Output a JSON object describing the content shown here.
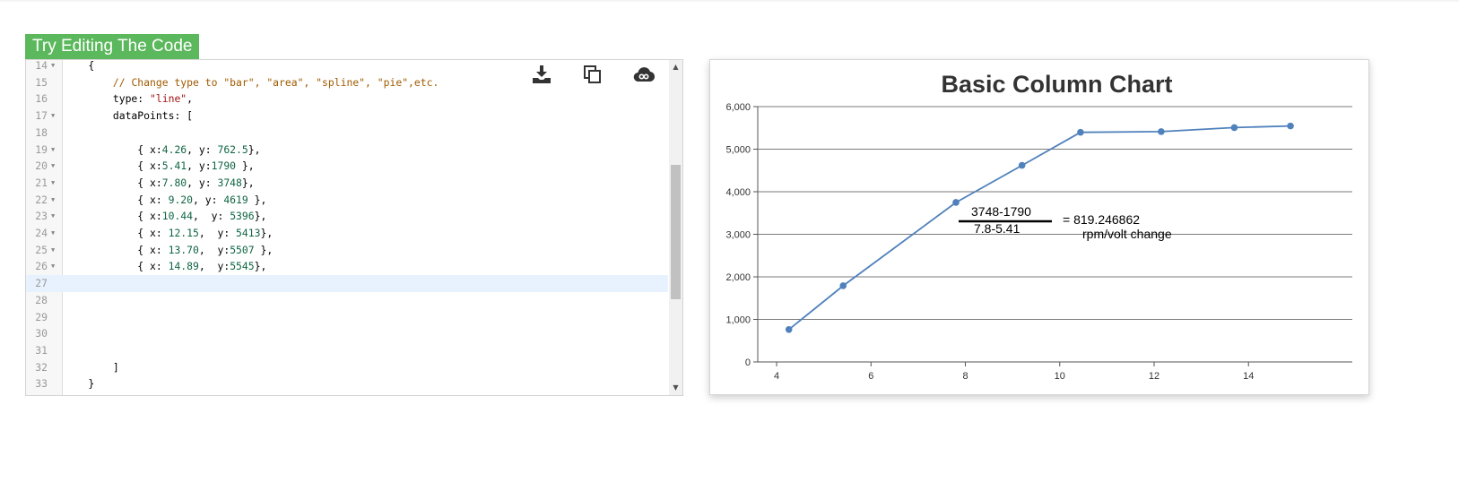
{
  "tab": {
    "label": "Try Editing The Code"
  },
  "editor": {
    "lines": [
      {
        "num": "14",
        "fold": "▼",
        "code": [
          {
            "t": "    {",
            "c": ""
          }
        ]
      },
      {
        "num": "15",
        "fold": "",
        "code": [
          {
            "t": "        ",
            "c": ""
          },
          {
            "t": "// Change type to \"bar\", \"area\", \"spline\", \"pie\",etc.",
            "c": "c-comment"
          }
        ]
      },
      {
        "num": "16",
        "fold": "",
        "code": [
          {
            "t": "        type: ",
            "c": ""
          },
          {
            "t": "\"line\"",
            "c": "c-string"
          },
          {
            "t": ",",
            "c": ""
          }
        ]
      },
      {
        "num": "17",
        "fold": "▼",
        "code": [
          {
            "t": "        dataPoints: [",
            "c": ""
          }
        ]
      },
      {
        "num": "18",
        "fold": "",
        "code": [
          {
            "t": "",
            "c": ""
          }
        ]
      },
      {
        "num": "19",
        "fold": "▼",
        "code": [
          {
            "t": "            { x:",
            "c": ""
          },
          {
            "t": "4.26",
            "c": "c-num"
          },
          {
            "t": ", y: ",
            "c": ""
          },
          {
            "t": "762.5",
            "c": "c-num"
          },
          {
            "t": "},",
            "c": ""
          }
        ]
      },
      {
        "num": "20",
        "fold": "▼",
        "code": [
          {
            "t": "            { x:",
            "c": ""
          },
          {
            "t": "5.41",
            "c": "c-num"
          },
          {
            "t": ", y:",
            "c": ""
          },
          {
            "t": "1790",
            "c": "c-num"
          },
          {
            "t": " },",
            "c": ""
          }
        ]
      },
      {
        "num": "21",
        "fold": "▼",
        "code": [
          {
            "t": "            { x:",
            "c": ""
          },
          {
            "t": "7.80",
            "c": "c-num"
          },
          {
            "t": ", y: ",
            "c": ""
          },
          {
            "t": "3748",
            "c": "c-num"
          },
          {
            "t": "},",
            "c": ""
          }
        ]
      },
      {
        "num": "22",
        "fold": "▼",
        "code": [
          {
            "t": "            { x: ",
            "c": ""
          },
          {
            "t": "9.20",
            "c": "c-num"
          },
          {
            "t": ", y: ",
            "c": ""
          },
          {
            "t": "4619",
            "c": "c-num"
          },
          {
            "t": " },",
            "c": ""
          }
        ]
      },
      {
        "num": "23",
        "fold": "▼",
        "code": [
          {
            "t": "            { x:",
            "c": ""
          },
          {
            "t": "10.44",
            "c": "c-num"
          },
          {
            "t": ",  y: ",
            "c": ""
          },
          {
            "t": "5396",
            "c": "c-num"
          },
          {
            "t": "},",
            "c": ""
          }
        ]
      },
      {
        "num": "24",
        "fold": "▼",
        "code": [
          {
            "t": "            { x: ",
            "c": ""
          },
          {
            "t": "12.15",
            "c": "c-num"
          },
          {
            "t": ",  y: ",
            "c": ""
          },
          {
            "t": "5413",
            "c": "c-num"
          },
          {
            "t": "},",
            "c": ""
          }
        ]
      },
      {
        "num": "25",
        "fold": "▼",
        "code": [
          {
            "t": "            { x: ",
            "c": ""
          },
          {
            "t": "13.70",
            "c": "c-num"
          },
          {
            "t": ",  y:",
            "c": ""
          },
          {
            "t": "5507",
            "c": "c-num"
          },
          {
            "t": " },",
            "c": ""
          }
        ]
      },
      {
        "num": "26",
        "fold": "▼",
        "code": [
          {
            "t": "            { x: ",
            "c": ""
          },
          {
            "t": "14.89",
            "c": "c-num"
          },
          {
            "t": ",  y:",
            "c": ""
          },
          {
            "t": "5545",
            "c": "c-num"
          },
          {
            "t": "},",
            "c": ""
          }
        ]
      },
      {
        "num": "27",
        "fold": "",
        "active": true,
        "code": [
          {
            "t": "",
            "c": ""
          }
        ]
      },
      {
        "num": "28",
        "fold": "",
        "code": [
          {
            "t": "",
            "c": ""
          }
        ]
      },
      {
        "num": "29",
        "fold": "",
        "code": [
          {
            "t": "",
            "c": ""
          }
        ]
      },
      {
        "num": "30",
        "fold": "",
        "code": [
          {
            "t": "",
            "c": ""
          }
        ]
      },
      {
        "num": "31",
        "fold": "",
        "code": [
          {
            "t": "",
            "c": ""
          }
        ]
      },
      {
        "num": "32",
        "fold": "",
        "code": [
          {
            "t": "        ]",
            "c": ""
          }
        ]
      },
      {
        "num": "33",
        "fold": "",
        "code": [
          {
            "t": "    }",
            "c": ""
          }
        ]
      }
    ],
    "icons": [
      "download-icon",
      "copy-icon",
      "cloud-icon"
    ]
  },
  "chart_data": {
    "type": "line",
    "title": "Basic Column Chart",
    "xlabel": "",
    "ylabel": "",
    "xlim": [
      3.6,
      16.2
    ],
    "ylim": [
      0,
      6000
    ],
    "x_ticks": [
      4,
      6,
      8,
      10,
      12,
      14
    ],
    "y_ticks": [
      0,
      1000,
      2000,
      3000,
      4000,
      5000,
      6000
    ],
    "y_tick_labels": [
      "0",
      "1,000",
      "2,000",
      "3,000",
      "4,000",
      "5,000",
      "6,000"
    ],
    "grid": "horizontal",
    "line_color": "#4f81bc",
    "series": [
      {
        "x": [
          4.26,
          5.41,
          7.8,
          9.2,
          10.44,
          12.15,
          13.7,
          14.89
        ],
        "y": [
          762.5,
          1790,
          3748,
          4619,
          5396,
          5413,
          5507,
          5545
        ]
      }
    ],
    "annotation": {
      "numerator": "3748-1790",
      "denominator": "7.8-5.41",
      "result": "= 819.246862",
      "unit": "rpm/volt change"
    }
  }
}
